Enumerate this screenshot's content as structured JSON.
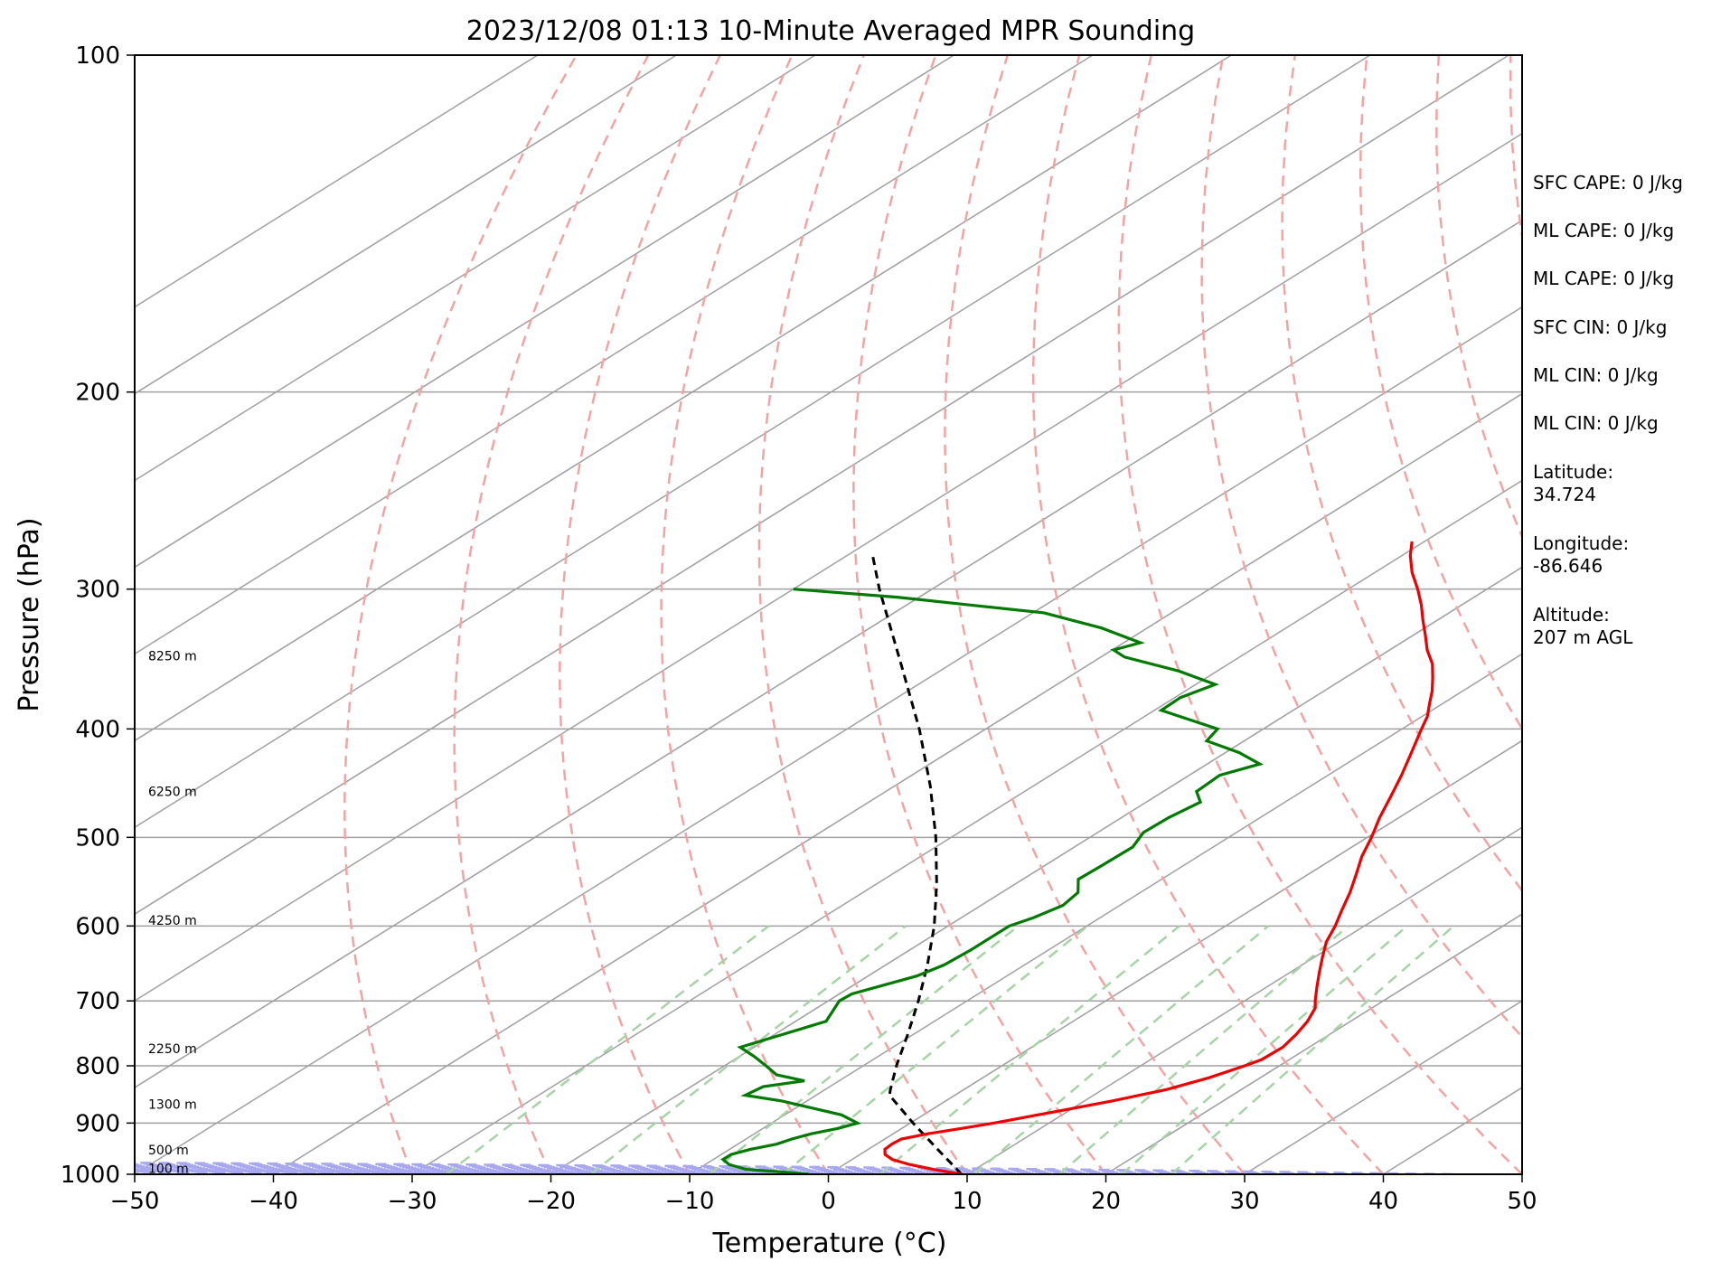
{
  "chart_data": {
    "type": "skew-t",
    "title": "2023/12/08 01:13 10-Minute Averaged MPR Sounding",
    "xlabel": "Temperature (°C)",
    "ylabel": "Pressure (hPa)",
    "xlim": [
      -50,
      50
    ],
    "ylim": [
      1000,
      100
    ],
    "y_scale": "log",
    "x_ticks": [
      "−50",
      "−40",
      "−30",
      "−20",
      "−10",
      "0",
      "10",
      "20",
      "30",
      "40",
      "50"
    ],
    "x_tick_values": [
      -50,
      -40,
      -30,
      -20,
      -10,
      0,
      10,
      20,
      30,
      40,
      50
    ],
    "y_ticks": [
      "100",
      "200",
      "300",
      "400",
      "500",
      "600",
      "700",
      "800",
      "900",
      "1000"
    ],
    "y_tick_values": [
      100,
      200,
      300,
      400,
      500,
      600,
      700,
      800,
      900,
      1000
    ],
    "grid": true,
    "colors": {
      "temperature": "#ee0000",
      "dewpoint": "#007a00",
      "parcel": "#000000",
      "dry_adiabat": "#f4a3a3",
      "moist_adiabat": "#a8a8f0",
      "mixing_ratio": "#a6d4a6",
      "isotherm": "#a0a0a0"
    },
    "temperature_profile": [
      {
        "p": 1000,
        "t": 9.6
      },
      {
        "p": 990,
        "t": 7.0
      },
      {
        "p": 980,
        "t": 4.7
      },
      {
        "p": 970,
        "t": 2.9
      },
      {
        "p": 960,
        "t": 1.8
      },
      {
        "p": 950,
        "t": 1.2
      },
      {
        "p": 940,
        "t": 1.1
      },
      {
        "p": 930,
        "t": 1.2
      },
      {
        "p": 920,
        "t": 2.5
      },
      {
        "p": 910,
        "t": 4.3
      },
      {
        "p": 900,
        "t": 6.0
      },
      {
        "p": 880,
        "t": 9.0
      },
      {
        "p": 860,
        "t": 12.0
      },
      {
        "p": 840,
        "t": 14.6
      },
      {
        "p": 820,
        "t": 16.3
      },
      {
        "p": 800,
        "t": 17.5
      },
      {
        "p": 790,
        "t": 18.0
      },
      {
        "p": 770,
        "t": 18.1
      },
      {
        "p": 750,
        "t": 17.6
      },
      {
        "p": 730,
        "t": 16.9
      },
      {
        "p": 710,
        "t": 15.9
      },
      {
        "p": 700,
        "t": 15.1
      },
      {
        "p": 680,
        "t": 13.6
      },
      {
        "p": 660,
        "t": 12.1
      },
      {
        "p": 640,
        "t": 10.6
      },
      {
        "p": 620,
        "t": 9.1
      },
      {
        "p": 600,
        "t": 7.9
      },
      {
        "p": 580,
        "t": 6.5
      },
      {
        "p": 560,
        "t": 5.1
      },
      {
        "p": 540,
        "t": 3.5
      },
      {
        "p": 520,
        "t": 1.8
      },
      {
        "p": 500,
        "t": 0.3
      },
      {
        "p": 480,
        "t": -1.4
      },
      {
        "p": 460,
        "t": -3.0
      },
      {
        "p": 440,
        "t": -4.7
      },
      {
        "p": 420,
        "t": -6.6
      },
      {
        "p": 400,
        "t": -8.6
      },
      {
        "p": 390,
        "t": -9.6
      },
      {
        "p": 380,
        "t": -10.9
      },
      {
        "p": 370,
        "t": -12.2
      },
      {
        "p": 360,
        "t": -13.7
      },
      {
        "p": 350,
        "t": -15.3
      },
      {
        "p": 340,
        "t": -17.3
      },
      {
        "p": 330,
        "t": -19.1
      },
      {
        "p": 320,
        "t": -21.0
      },
      {
        "p": 310,
        "t": -22.9
      },
      {
        "p": 300,
        "t": -25.0
      },
      {
        "p": 290,
        "t": -27.3
      },
      {
        "p": 280,
        "t": -29.4
      },
      {
        "p": 272,
        "t": -30.9
      }
    ],
    "dewpoint_profile": [
      {
        "p": 1000,
        "t": -1.4
      },
      {
        "p": 995,
        "t": -3.7
      },
      {
        "p": 990,
        "t": -6.5
      },
      {
        "p": 980,
        "t": -8.3
      },
      {
        "p": 970,
        "t": -9.3
      },
      {
        "p": 960,
        "t": -9.3
      },
      {
        "p": 950,
        "t": -8.5
      },
      {
        "p": 940,
        "t": -7.2
      },
      {
        "p": 930,
        "t": -6.7
      },
      {
        "p": 920,
        "t": -5.9
      },
      {
        "p": 910,
        "t": -4.6
      },
      {
        "p": 900,
        "t": -3.8
      },
      {
        "p": 885,
        "t": -5.9
      },
      {
        "p": 860,
        "t": -11.8
      },
      {
        "p": 850,
        "t": -15.1
      },
      {
        "p": 835,
        "t": -14.8
      },
      {
        "p": 825,
        "t": -12.5
      },
      {
        "p": 815,
        "t": -15.2
      },
      {
        "p": 800,
        "t": -17.0
      },
      {
        "p": 785,
        "t": -18.9
      },
      {
        "p": 770,
        "t": -21.0
      },
      {
        "p": 760,
        "t": -20.2
      },
      {
        "p": 730,
        "t": -17.8
      },
      {
        "p": 700,
        "t": -19.2
      },
      {
        "p": 690,
        "t": -19.1
      },
      {
        "p": 665,
        "t": -16.5
      },
      {
        "p": 650,
        "t": -15.8
      },
      {
        "p": 630,
        "t": -15.6
      },
      {
        "p": 600,
        "t": -15.6
      },
      {
        "p": 590,
        "t": -14.8
      },
      {
        "p": 575,
        "t": -14.1
      },
      {
        "p": 560,
        "t": -14.5
      },
      {
        "p": 545,
        "t": -16.0
      },
      {
        "p": 530,
        "t": -15.9
      },
      {
        "p": 510,
        "t": -15.8
      },
      {
        "p": 495,
        "t": -16.7
      },
      {
        "p": 480,
        "t": -16.6
      },
      {
        "p": 465,
        "t": -16.1
      },
      {
        "p": 455,
        "t": -17.6
      },
      {
        "p": 440,
        "t": -17.8
      },
      {
        "p": 430,
        "t": -16.2
      },
      {
        "p": 420,
        "t": -19.0
      },
      {
        "p": 410,
        "t": -22.7
      },
      {
        "p": 400,
        "t": -23.3
      },
      {
        "p": 385,
        "t": -29.5
      },
      {
        "p": 375,
        "t": -29.6
      },
      {
        "p": 365,
        "t": -28.6
      },
      {
        "p": 355,
        "t": -32.8
      },
      {
        "p": 345,
        "t": -38.3
      },
      {
        "p": 340,
        "t": -39.9
      },
      {
        "p": 335,
        "t": -38.8
      },
      {
        "p": 325,
        "t": -43.3
      },
      {
        "p": 315,
        "t": -49.2
      },
      {
        "p": 310,
        "t": -55.4
      },
      {
        "p": 305,
        "t": -61.6
      },
      {
        "p": 300,
        "t": -70.0
      }
    ],
    "parcel_profile": [
      {
        "p": 1000,
        "t": 9.6
      },
      {
        "p": 950,
        "t": 5.0
      },
      {
        "p": 900,
        "t": 0.2
      },
      {
        "p": 850,
        "t": -4.7
      },
      {
        "p": 840,
        "t": -5.3
      },
      {
        "p": 800,
        "t": -7.6
      },
      {
        "p": 750,
        "t": -10.4
      },
      {
        "p": 700,
        "t": -13.5
      },
      {
        "p": 650,
        "t": -17.0
      },
      {
        "p": 600,
        "t": -21.0
      },
      {
        "p": 550,
        "t": -25.7
      },
      {
        "p": 500,
        "t": -31.1
      },
      {
        "p": 450,
        "t": -37.4
      },
      {
        "p": 400,
        "t": -44.8
      },
      {
        "p": 350,
        "t": -53.6
      },
      {
        "p": 300,
        "t": -63.8
      },
      {
        "p": 278,
        "t": -68.6
      }
    ],
    "height_labels": [
      {
        "p": 988,
        "text": "100 m"
      },
      {
        "p": 951,
        "text": "500 m"
      },
      {
        "p": 866,
        "text": "1300 m"
      },
      {
        "p": 772,
        "text": "2250 m"
      },
      {
        "p": 593,
        "text": "4250 m"
      },
      {
        "p": 455,
        "text": "6250 m"
      },
      {
        "p": 344,
        "text": "8250 m"
      }
    ]
  },
  "info": {
    "sfc_cape": "SFC CAPE: 0 J/kg",
    "ml_cape_1": "ML CAPE: 0 J/kg",
    "ml_cape_2": "ML CAPE: 0 J/kg",
    "sfc_cin": "SFC CIN: 0 J/kg",
    "ml_cin_1": "ML CIN: 0 J/kg",
    "ml_cin_2": "ML CIN: 0 J/kg",
    "latitude": "Latitude:\n34.724",
    "longitude": "Longitude:\n-86.646",
    "altitude": "Altitude:\n207 m AGL"
  }
}
